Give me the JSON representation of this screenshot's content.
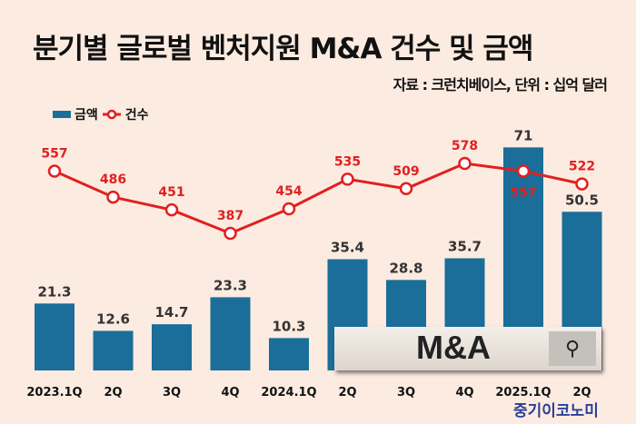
{
  "title": "분기별 글로벌 벤처지원 M&A 건수 및 금액",
  "source": "자료 : 크런치베이스, 단위 : 십억 달러",
  "watermark": "중기이코노미",
  "overlay": {
    "search_text": "M&A",
    "search_icon": "search-icon"
  },
  "colors": {
    "bar": "#1a6e99",
    "line": "#e02020",
    "background": "#fcebe0"
  },
  "chart_data": {
    "type": "bar+line",
    "categories": [
      "2023.1Q",
      "2Q",
      "3Q",
      "4Q",
      "2024.1Q",
      "2Q",
      "3Q",
      "4Q",
      "2025.1Q",
      "2Q"
    ],
    "series": [
      {
        "name": "금액",
        "type": "bar",
        "values": [
          21.3,
          12.6,
          14.7,
          23.3,
          10.3,
          35.4,
          28.8,
          35.7,
          71,
          50.5
        ]
      },
      {
        "name": "건수",
        "type": "line",
        "values": [
          557,
          486,
          451,
          387,
          454,
          535,
          509,
          578,
          557,
          522
        ]
      }
    ],
    "legend": "top-left",
    "grid": false
  }
}
